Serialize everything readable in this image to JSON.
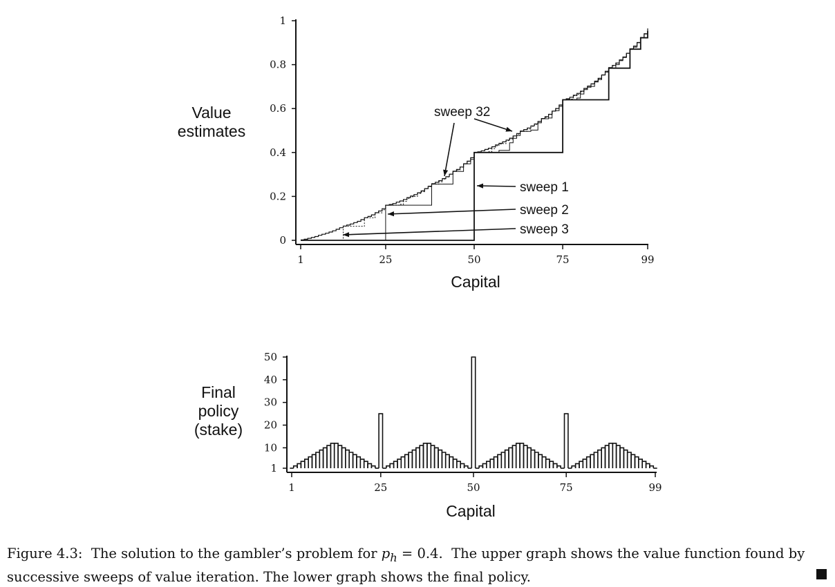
{
  "chart_data": [
    {
      "type": "line",
      "ylabel_lines": [
        "Value",
        "estimates"
      ],
      "xlabel": "Capital",
      "x_ticks": [
        1,
        25,
        50,
        75,
        99
      ],
      "y_ticks": [
        0,
        0.2,
        0.4,
        0.6,
        0.8,
        1
      ],
      "y_tick_labels": [
        "0",
        "0.2",
        "0.4",
        "0.6",
        "0.8",
        "1"
      ],
      "xlim": [
        1,
        99
      ],
      "ylim": [
        0,
        1
      ],
      "p_h": 0.4,
      "series": [
        {
          "name": "sweep 1",
          "sweep": 1
        },
        {
          "name": "sweep 2",
          "sweep": 2
        },
        {
          "name": "sweep 3",
          "sweep": 3
        },
        {
          "name": "sweep 32",
          "sweep": 32
        }
      ],
      "annotations": [
        {
          "text": "sweep 32",
          "points_to": [
            [
              42,
              0.29
            ],
            [
              60,
              0.49
            ]
          ]
        },
        {
          "text": "sweep 1",
          "points_to": [
            [
              50,
              0.25
            ]
          ]
        },
        {
          "text": "sweep 2",
          "points_to": [
            [
              25,
              0.12
            ]
          ]
        },
        {
          "text": "sweep 3",
          "points_to": [
            [
              12,
              0.03
            ]
          ]
        }
      ]
    },
    {
      "type": "bar",
      "ylabel_lines": [
        "Final",
        "policy",
        "(stake)"
      ],
      "xlabel": "Capital",
      "x_ticks": [
        1,
        25,
        50,
        75,
        99
      ],
      "y_ticks": [
        1,
        10,
        20,
        30,
        40,
        50
      ],
      "xlim": [
        1,
        99
      ],
      "ylim": [
        1,
        50
      ],
      "stakes": [
        1,
        2,
        3,
        4,
        5,
        6,
        7,
        8,
        9,
        10,
        11,
        12,
        12,
        11,
        10,
        9,
        8,
        7,
        6,
        5,
        4,
        3,
        2,
        1,
        25,
        1,
        2,
        3,
        4,
        5,
        6,
        7,
        8,
        9,
        10,
        11,
        12,
        12,
        11,
        10,
        9,
        8,
        7,
        6,
        5,
        4,
        3,
        2,
        1,
        50,
        1,
        2,
        3,
        4,
        5,
        6,
        7,
        8,
        9,
        10,
        11,
        12,
        12,
        11,
        10,
        9,
        8,
        7,
        6,
        5,
        4,
        3,
        2,
        1,
        25,
        1,
        2,
        3,
        4,
        5,
        6,
        7,
        8,
        9,
        10,
        11,
        12,
        12,
        11,
        10,
        9,
        8,
        7,
        6,
        5,
        4,
        3,
        2,
        1
      ]
    }
  ],
  "caption": {
    "prefix": "Figure 4.3:",
    "part1": "The solution to the gambler’s problem for",
    "var": "p",
    "sub": "h",
    "eq": "= 0.4.",
    "part2": "The upper graph shows the value function found by successive sweeps of value iteration. The lower graph shows the final policy."
  }
}
